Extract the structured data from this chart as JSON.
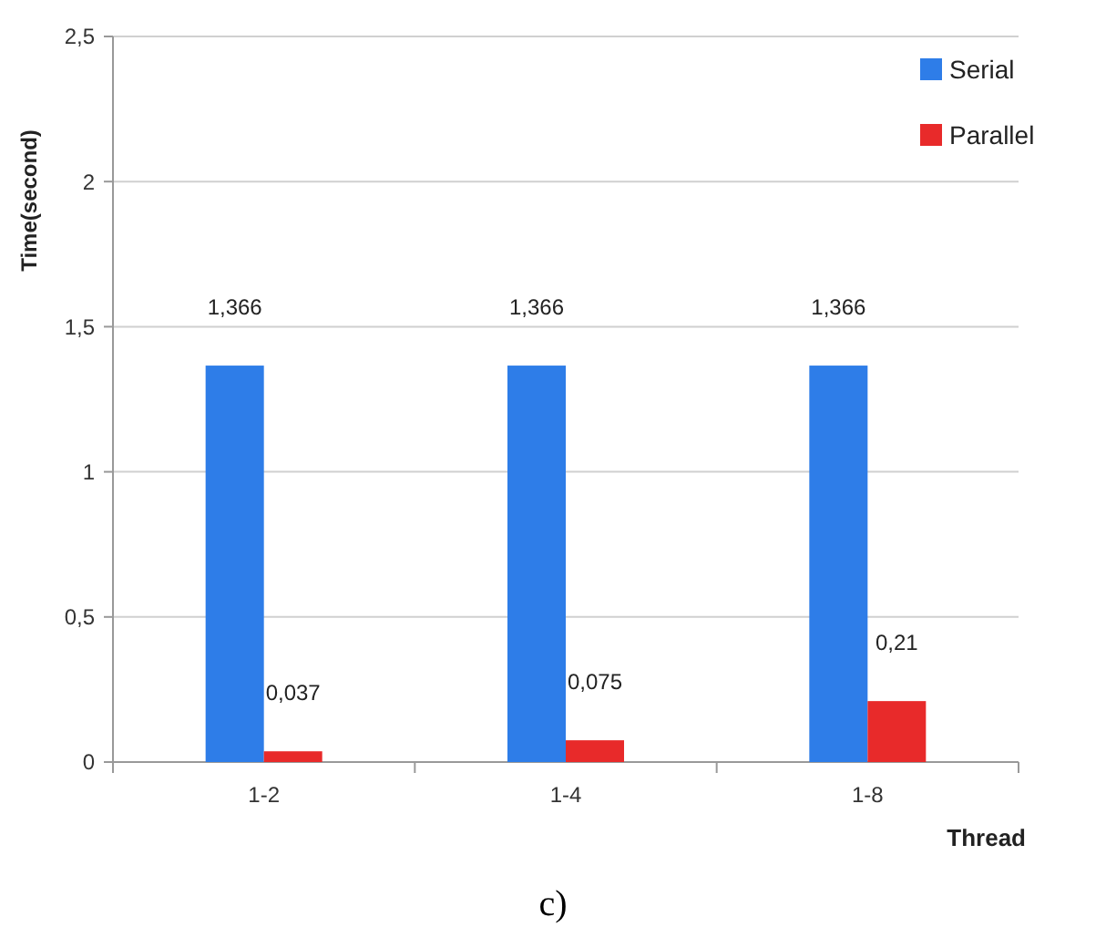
{
  "chart_data": {
    "type": "bar",
    "xlabel": "Thread",
    "ylabel": "Time(second)",
    "categories": [
      "1-2",
      "1-4",
      "1-8"
    ],
    "series": [
      {
        "name": "Serial",
        "color": "#2e7de8",
        "values": [
          1.366,
          1.366,
          1.366
        ],
        "value_labels": [
          "1,366",
          "1,366",
          "1,366"
        ]
      },
      {
        "name": "Parallel",
        "color": "#e82a2a",
        "values": [
          0.037,
          0.075,
          0.21
        ],
        "value_labels": [
          "0,037",
          "0,075",
          "0,21"
        ]
      }
    ],
    "ylim": [
      0,
      2.5
    ],
    "yticks": [
      {
        "value": 0,
        "label": "0"
      },
      {
        "value": 0.5,
        "label": "0,5"
      },
      {
        "value": 1,
        "label": "1"
      },
      {
        "value": 1.5,
        "label": "1,5"
      },
      {
        "value": 2,
        "label": "2"
      },
      {
        "value": 2.5,
        "label": "2,5"
      }
    ],
    "grid": "y",
    "legend": "top right",
    "annotations": [
      "c)"
    ]
  }
}
